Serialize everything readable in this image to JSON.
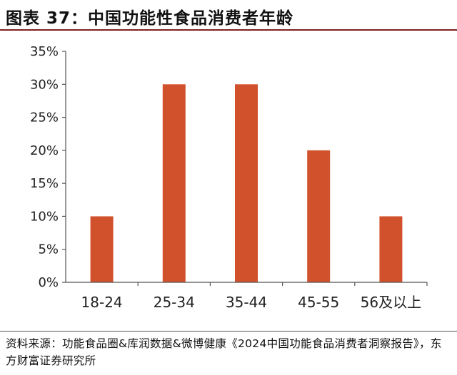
{
  "title": "图表 37：中国功能性食品消费者年龄",
  "source": "资料来源：功能食品圈&库润数据&微博健康《2024中国功能食品消费者洞察报告》，东方财富证券研究所",
  "colors": {
    "bar": "#d1512d",
    "title_rule": "#7f1f1f",
    "axis": "#555555"
  },
  "chart_data": {
    "type": "bar",
    "categories": [
      "18-24",
      "25-34",
      "35-44",
      "45-55",
      "56及以上"
    ],
    "values": [
      10,
      30,
      30,
      20,
      10
    ],
    "unit": "%",
    "title": "",
    "xlabel": "",
    "ylabel": "",
    "ylim": [
      0,
      35
    ],
    "yticks": [
      0,
      5,
      10,
      15,
      20,
      25,
      30,
      35
    ],
    "ytick_labels": [
      "0%",
      "5%",
      "10%",
      "15%",
      "20%",
      "25%",
      "30%",
      "35%"
    ],
    "grid": false,
    "legend": "none"
  }
}
